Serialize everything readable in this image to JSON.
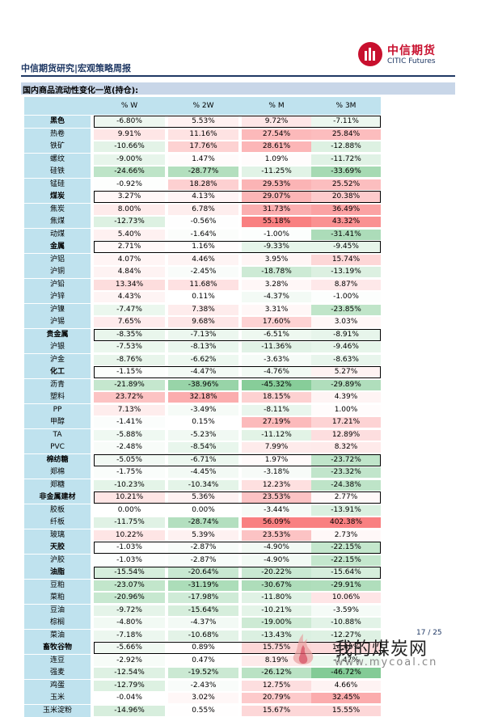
{
  "header": {
    "title": "中信期货研究|宏观策略周报",
    "logo_cn": "中信期货",
    "logo_en": "CITIC Futures"
  },
  "section": {
    "title": "国内商品流动性变化一览(持仓):"
  },
  "table": {
    "columns": [
      "% W",
      "% 2W",
      "% M",
      "% 3M"
    ],
    "rows": [
      {
        "label": "黑色",
        "group": true,
        "values": [
          "-6.80%",
          "5.53%",
          "9.72%",
          "-7.11%"
        ]
      },
      {
        "label": "热卷",
        "group": false,
        "values": [
          "9.91%",
          "11.16%",
          "27.54%",
          "25.84%"
        ]
      },
      {
        "label": "铁矿",
        "group": false,
        "values": [
          "-10.66%",
          "17.76%",
          "28.61%",
          "-12.88%"
        ]
      },
      {
        "label": "螺纹",
        "group": false,
        "values": [
          "-9.00%",
          "1.47%",
          "1.09%",
          "-11.72%"
        ]
      },
      {
        "label": "硅铁",
        "group": false,
        "values": [
          "-24.66%",
          "-28.77%",
          "-11.25%",
          "-33.69%"
        ]
      },
      {
        "label": "锰硅",
        "group": false,
        "values": [
          "-0.92%",
          "18.28%",
          "29.53%",
          "25.52%"
        ]
      },
      {
        "label": "煤炭",
        "group": true,
        "values": [
          "3.27%",
          "4.13%",
          "29.07%",
          "20.38%"
        ]
      },
      {
        "label": "焦炭",
        "group": false,
        "values": [
          "8.00%",
          "6.78%",
          "31.73%",
          "36.49%"
        ]
      },
      {
        "label": "焦煤",
        "group": false,
        "values": [
          "-12.73%",
          "-0.56%",
          "55.18%",
          "43.32%"
        ]
      },
      {
        "label": "动煤",
        "group": false,
        "values": [
          "5.40%",
          "-1.64%",
          "-1.00%",
          "-31.41%"
        ]
      },
      {
        "label": "金属",
        "group": true,
        "values": [
          "2.71%",
          "1.16%",
          "-9.33%",
          "-9.45%"
        ]
      },
      {
        "label": "沪铝",
        "group": false,
        "values": [
          "4.07%",
          "4.46%",
          "3.95%",
          "15.74%"
        ]
      },
      {
        "label": "沪铜",
        "group": false,
        "values": [
          "4.84%",
          "-2.45%",
          "-18.78%",
          "-13.19%"
        ]
      },
      {
        "label": "沪铅",
        "group": false,
        "values": [
          "13.34%",
          "11.68%",
          "3.28%",
          "8.87%"
        ]
      },
      {
        "label": "沪锌",
        "group": false,
        "values": [
          "4.43%",
          "0.11%",
          "-4.37%",
          "-1.00%"
        ]
      },
      {
        "label": "沪镍",
        "group": false,
        "values": [
          "-7.47%",
          "7.38%",
          "3.31%",
          "-23.85%"
        ]
      },
      {
        "label": "沪锡",
        "group": false,
        "values": [
          "7.65%",
          "9.68%",
          "17.60%",
          "3.03%"
        ]
      },
      {
        "label": "贵金属",
        "group": true,
        "values": [
          "-8.35%",
          "-7.13%",
          "-6.51%",
          "-8.91%"
        ]
      },
      {
        "label": "沪银",
        "group": false,
        "values": [
          "-7.53%",
          "-8.13%",
          "-11.36%",
          "-9.46%"
        ]
      },
      {
        "label": "沪金",
        "group": false,
        "values": [
          "-8.76%",
          "-6.62%",
          "-3.63%",
          "-8.63%"
        ]
      },
      {
        "label": "化工",
        "group": true,
        "values": [
          "-1.15%",
          "-4.47%",
          "-4.76%",
          "5.27%"
        ]
      },
      {
        "label": "沥青",
        "group": false,
        "values": [
          "-21.89%",
          "-38.96%",
          "-45.32%",
          "-29.89%"
        ]
      },
      {
        "label": "塑料",
        "group": false,
        "values": [
          "23.72%",
          "32.18%",
          "18.15%",
          "4.39%"
        ]
      },
      {
        "label": "PP",
        "group": false,
        "values": [
          "7.13%",
          "-3.49%",
          "-8.11%",
          "1.00%"
        ]
      },
      {
        "label": "甲醇",
        "group": false,
        "values": [
          "-1.41%",
          "0.15%",
          "27.19%",
          "17.21%"
        ]
      },
      {
        "label": "TA",
        "group": false,
        "values": [
          "-5.88%",
          "-5.23%",
          "-11.12%",
          "12.89%"
        ]
      },
      {
        "label": "PVC",
        "group": false,
        "values": [
          "-2.48%",
          "-8.54%",
          "7.99%",
          "8.32%"
        ]
      },
      {
        "label": "棉纺糖",
        "group": true,
        "values": [
          "-5.05%",
          "-6.71%",
          "1.97%",
          "-23.72%"
        ]
      },
      {
        "label": "郑棉",
        "group": false,
        "values": [
          "-1.75%",
          "-4.45%",
          "-3.18%",
          "-23.32%"
        ]
      },
      {
        "label": "郑糖",
        "group": false,
        "values": [
          "-10.23%",
          "-10.34%",
          "12.23%",
          "-24.38%"
        ]
      },
      {
        "label": "非金属建材",
        "group": true,
        "values": [
          "10.21%",
          "5.36%",
          "23.53%",
          "2.77%"
        ]
      },
      {
        "label": "胶板",
        "group": false,
        "values": [
          "0.00%",
          "0.00%",
          "-3.44%",
          "-13.91%"
        ]
      },
      {
        "label": "纤板",
        "group": false,
        "values": [
          "-11.75%",
          "-28.74%",
          "56.09%",
          "402.38%"
        ]
      },
      {
        "label": "玻璃",
        "group": false,
        "values": [
          "10.22%",
          "5.39%",
          "23.53%",
          "2.73%"
        ]
      },
      {
        "label": "天胶",
        "group": true,
        "values": [
          "-1.03%",
          "-2.87%",
          "-4.90%",
          "-22.15%"
        ]
      },
      {
        "label": "沪胶",
        "group": false,
        "values": [
          "-1.03%",
          "-2.87%",
          "-4.90%",
          "-22.15%"
        ]
      },
      {
        "label": "油脂",
        "group": true,
        "values": [
          "-15.54%",
          "-20.64%",
          "-20.22%",
          "-15.64%"
        ]
      },
      {
        "label": "豆粕",
        "group": false,
        "values": [
          "-23.07%",
          "-31.19%",
          "-30.67%",
          "-29.91%"
        ]
      },
      {
        "label": "菜粕",
        "group": false,
        "values": [
          "-20.96%",
          "-17.98%",
          "-11.80%",
          "10.06%"
        ]
      },
      {
        "label": "豆油",
        "group": false,
        "values": [
          "-9.72%",
          "-15.64%",
          "-10.21%",
          "-3.59%"
        ]
      },
      {
        "label": "棕榈",
        "group": false,
        "values": [
          "-4.80%",
          "-4.37%",
          "-19.00%",
          "-10.88%"
        ]
      },
      {
        "label": "菜油",
        "group": false,
        "values": [
          "-7.18%",
          "-10.68%",
          "-13.43%",
          "-12.27%"
        ]
      },
      {
        "label": "畜牧谷物",
        "group": true,
        "values": [
          "-5.66%",
          "0.89%",
          "15.75%",
          "14.49%"
        ]
      },
      {
        "label": "连豆",
        "group": false,
        "values": [
          "-2.92%",
          "0.47%",
          "8.19%",
          "-7.47%"
        ]
      },
      {
        "label": "强麦",
        "group": false,
        "values": [
          "-12.54%",
          "-19.52%",
          "-26.12%",
          "-46.72%"
        ]
      },
      {
        "label": "鸡蛋",
        "group": false,
        "values": [
          "-12.79%",
          "-2.43%",
          "12.75%",
          "4.66%"
        ]
      },
      {
        "label": "玉米",
        "group": false,
        "values": [
          "-0.04%",
          "3.02%",
          "20.79%",
          "32.45%"
        ]
      },
      {
        "label": "玉米淀粉",
        "group": false,
        "values": [
          "-14.96%",
          "0.55%",
          "15.67%",
          "15.55%"
        ]
      }
    ]
  },
  "colors": {
    "positive": "#f8696b",
    "negative": "#63be7b",
    "neutral": "#ffffff",
    "label_bg": "#bfe2ee",
    "header_text": "#1f3864"
  },
  "footer": {
    "page": "17 / 25",
    "watermark_cn": "我的煤炭网",
    "watermark_url": "www.mycoal.cn"
  }
}
